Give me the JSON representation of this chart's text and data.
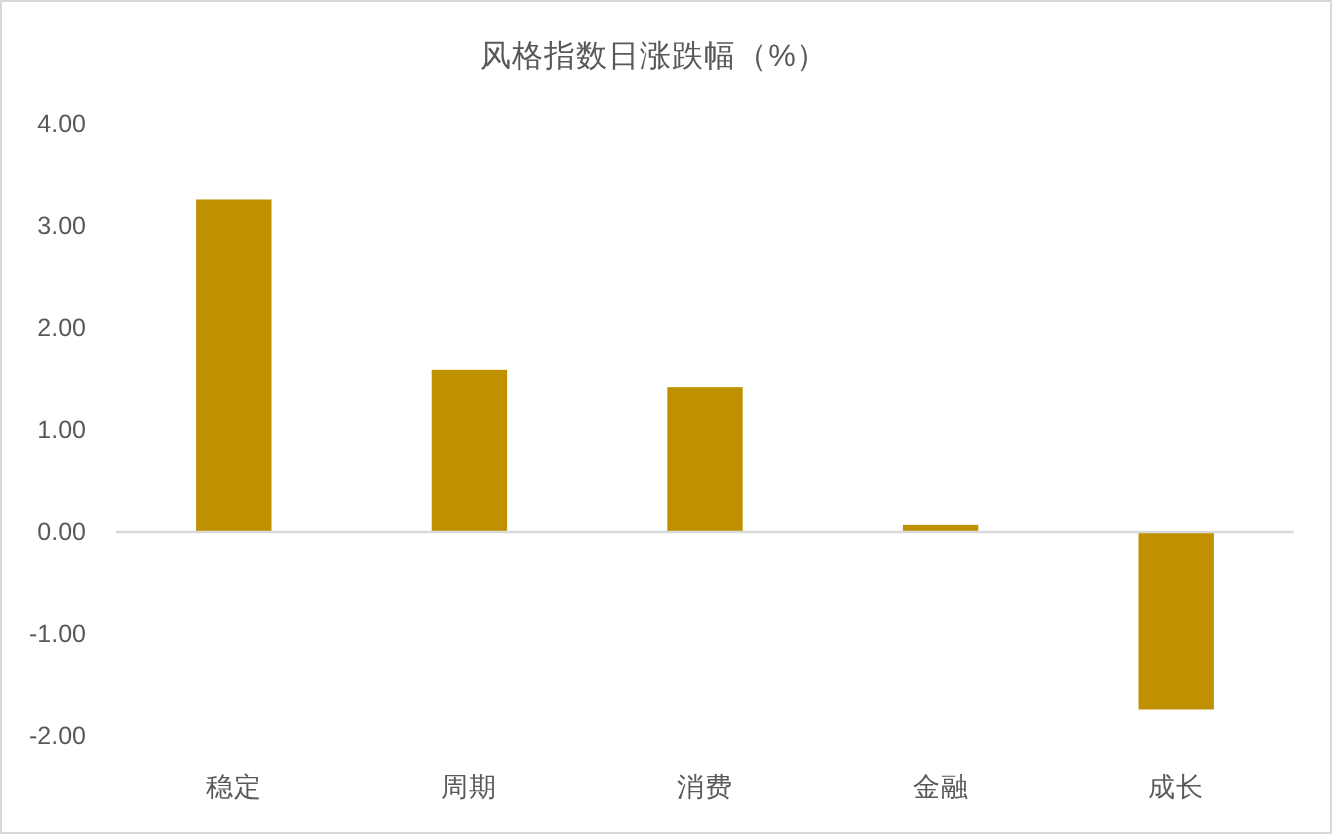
{
  "chart_data": {
    "type": "bar",
    "title": "风格指数日涨跌幅（%）",
    "categories": [
      "稳定",
      "周期",
      "消费",
      "金融",
      "成长"
    ],
    "values": [
      3.26,
      1.59,
      1.42,
      0.07,
      -1.74
    ],
    "color": "#bf9000",
    "ylim": [
      -2,
      4
    ],
    "yticks": [
      {
        "value": -2,
        "label": "-2.00"
      },
      {
        "value": -1,
        "label": "-1.00"
      },
      {
        "value": 0,
        "label": "0.00"
      },
      {
        "value": 1,
        "label": "1.00"
      },
      {
        "value": 2,
        "label": "2.00"
      },
      {
        "value": 3,
        "label": "3.00"
      },
      {
        "value": 4,
        "label": "4.00"
      }
    ]
  }
}
